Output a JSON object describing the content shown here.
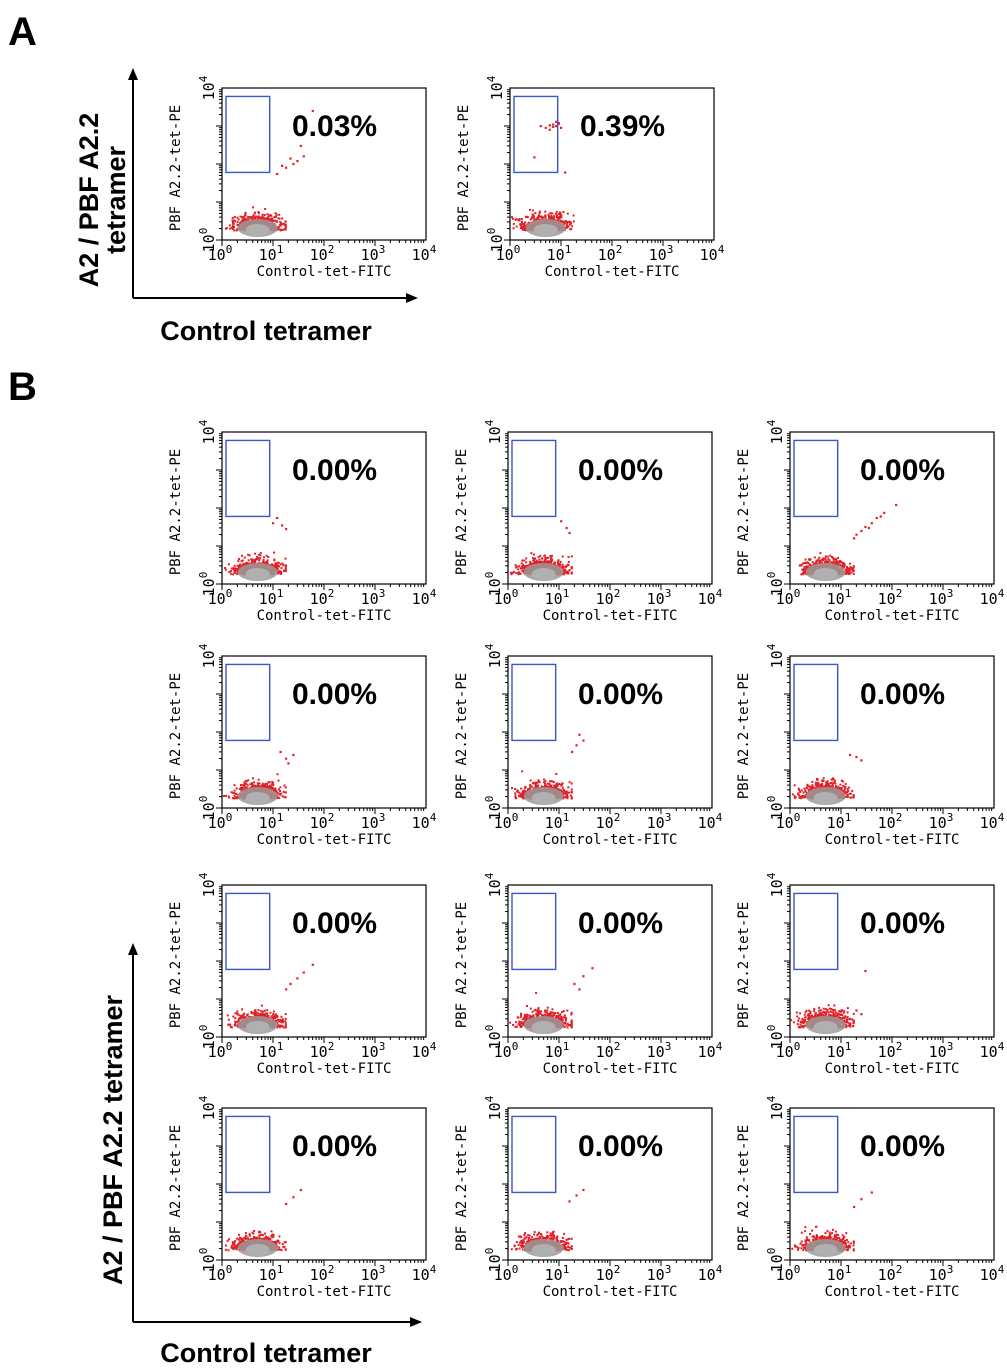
{
  "figure": {
    "panel_a_letter": "A",
    "panel_b_letter": "B",
    "panel_a_y_axis_label": [
      "A2 / PBF A2.2",
      "tetramer"
    ],
    "panel_a_x_axis_label": "Control tetramer",
    "panel_b_y_axis_label": "A2 / PBF A2.2 tetramer",
    "panel_b_x_axis_label": "Control tetramer",
    "colors": {
      "gate": "#3a55c8",
      "events": "#e21f26",
      "core": "#9a9a9a"
    }
  },
  "chart_data": [
    {
      "panel": "A",
      "type": "scatter",
      "xlabel": "Control-tet-FITC",
      "ylabel": "PBF A2.2-tet-PE",
      "log_scale": true,
      "xlim": [
        1,
        10000
      ],
      "ylim": [
        1,
        10000
      ],
      "x_ticks": [
        "10^0",
        "10^1",
        "10^2",
        "10^3",
        "10^4"
      ],
      "y_ticks": [
        "10^0",
        "10^4"
      ],
      "gate_percent": "0.03%",
      "gate": {
        "x": [
          1,
          6
        ],
        "y": [
          60,
          6000
        ]
      },
      "outliers": [
        [
          60,
          2500
        ],
        [
          35,
          300
        ],
        [
          18,
          80
        ],
        [
          22,
          140
        ],
        [
          12,
          55
        ],
        [
          25,
          100
        ],
        [
          30,
          120
        ],
        [
          40,
          160
        ],
        [
          15,
          90
        ]
      ]
    },
    {
      "panel": "A",
      "type": "scatter",
      "xlabel": "Control-tet-FITC",
      "ylabel": "PBF A2.2-tet-PE",
      "log_scale": true,
      "xlim": [
        1,
        10000
      ],
      "ylim": [
        1,
        10000
      ],
      "x_ticks": [
        "10^0",
        "10^1",
        "10^2",
        "10^3",
        "10^4"
      ],
      "y_ticks": [
        "10^0",
        "10^4"
      ],
      "gate_percent": "0.39%",
      "gate": {
        "x": [
          1,
          6
        ],
        "y": [
          60,
          6000
        ]
      },
      "outliers": [
        [
          5,
          900
        ],
        [
          7,
          1100
        ],
        [
          8,
          1000
        ],
        [
          6,
          800
        ],
        [
          9,
          1200
        ],
        [
          7,
          950
        ],
        [
          4,
          1000
        ],
        [
          8,
          1300
        ],
        [
          6,
          1050
        ],
        [
          10,
          900
        ],
        [
          3,
          150
        ],
        [
          12,
          60
        ],
        [
          9,
          1150
        ]
      ]
    },
    {
      "panel": "B",
      "type": "scatter",
      "xlabel": "Control-tet-FITC",
      "ylabel": "PBF A2.2-tet-PE",
      "log_scale": true,
      "xlim": [
        1,
        10000
      ],
      "ylim": [
        1,
        10000
      ],
      "x_ticks": [
        "10^0",
        "10^1",
        "10^2",
        "10^3",
        "10^4"
      ],
      "y_ticks": [
        "10^0",
        "10^4"
      ],
      "gate_percent": "0.00%",
      "gate": {
        "x": [
          1,
          6
        ],
        "y": [
          60,
          6000
        ]
      },
      "outliers": [
        [
          12,
          55
        ],
        [
          15,
          35
        ],
        [
          18,
          28
        ],
        [
          10,
          40
        ]
      ]
    },
    {
      "panel": "B",
      "type": "scatter",
      "xlabel": "Control-tet-FITC",
      "ylabel": "PBF A2.2-tet-PE",
      "log_scale": true,
      "xlim": [
        1,
        10000
      ],
      "ylim": [
        1,
        10000
      ],
      "x_ticks": [
        "10^0",
        "10^1",
        "10^2",
        "10^3",
        "10^4"
      ],
      "y_ticks": [
        "10^0",
        "10^4"
      ],
      "gate_percent": "0.00%",
      "gate": {
        "x": [
          1,
          6
        ],
        "y": [
          60,
          6000
        ]
      },
      "outliers": [
        [
          14,
          30
        ],
        [
          11,
          45
        ],
        [
          16,
          22
        ]
      ]
    },
    {
      "panel": "B",
      "type": "scatter",
      "xlabel": "Control-tet-FITC",
      "ylabel": "PBF A2.2-tet-PE",
      "log_scale": true,
      "xlim": [
        1,
        10000
      ],
      "ylim": [
        1,
        10000
      ],
      "x_ticks": [
        "10^0",
        "10^1",
        "10^2",
        "10^3",
        "10^4"
      ],
      "y_ticks": [
        "10^0",
        "10^4"
      ],
      "gate_percent": "0.00%",
      "gate": {
        "x": [
          1,
          6
        ],
        "y": [
          60,
          6000
        ]
      },
      "outliers": [
        [
          120,
          120
        ],
        [
          70,
          75
        ],
        [
          50,
          55
        ],
        [
          40,
          40
        ],
        [
          30,
          32
        ],
        [
          25,
          25
        ],
        [
          20,
          20
        ],
        [
          18,
          16
        ],
        [
          35,
          30
        ],
        [
          60,
          60
        ]
      ]
    },
    {
      "panel": "B",
      "type": "scatter",
      "xlabel": "Control-tet-FITC",
      "ylabel": "PBF A2.2-tet-PE",
      "log_scale": true,
      "xlim": [
        1,
        10000
      ],
      "ylim": [
        1,
        10000
      ],
      "x_ticks": [
        "10^0",
        "10^1",
        "10^2",
        "10^3",
        "10^4"
      ],
      "y_ticks": [
        "10^0",
        "10^4"
      ],
      "gate_percent": "0.00%",
      "gate": {
        "x": [
          1,
          6
        ],
        "y": [
          60,
          6000
        ]
      },
      "outliers": [
        [
          25,
          25
        ],
        [
          18,
          20
        ],
        [
          14,
          30
        ],
        [
          20,
          15
        ]
      ]
    },
    {
      "panel": "B",
      "type": "scatter",
      "xlabel": "Control-tet-FITC",
      "ylabel": "PBF A2.2-tet-PE",
      "log_scale": true,
      "xlim": [
        1,
        10000
      ],
      "ylim": [
        1,
        10000
      ],
      "x_ticks": [
        "10^0",
        "10^1",
        "10^2",
        "10^3",
        "10^4"
      ],
      "y_ticks": [
        "10^0",
        "10^4"
      ],
      "gate_percent": "0.00%",
      "gate": {
        "x": [
          1,
          6
        ],
        "y": [
          60,
          6000
        ]
      },
      "outliers": [
        [
          30,
          60
        ],
        [
          22,
          45
        ],
        [
          18,
          30
        ],
        [
          25,
          85
        ]
      ]
    },
    {
      "panel": "B",
      "type": "scatter",
      "xlabel": "Control-tet-FITC",
      "ylabel": "PBF A2.2-tet-PE",
      "log_scale": true,
      "xlim": [
        1,
        10000
      ],
      "ylim": [
        1,
        10000
      ],
      "x_ticks": [
        "10^0",
        "10^1",
        "10^2",
        "10^3",
        "10^4"
      ],
      "y_ticks": [
        "10^0",
        "10^4"
      ],
      "gate_percent": "0.00%",
      "gate": {
        "x": [
          1,
          6
        ],
        "y": [
          60,
          6000
        ]
      },
      "outliers": [
        [
          20,
          22
        ],
        [
          25,
          18
        ],
        [
          15,
          25
        ]
      ]
    },
    {
      "panel": "B",
      "type": "scatter",
      "xlabel": "Control-tet-FITC",
      "ylabel": "PBF A2.2-tet-PE",
      "log_scale": true,
      "xlim": [
        1,
        10000
      ],
      "ylim": [
        1,
        10000
      ],
      "x_ticks": [
        "10^0",
        "10^1",
        "10^2",
        "10^3",
        "10^4"
      ],
      "y_ticks": [
        "10^0",
        "10^4"
      ],
      "gate_percent": "0.00%",
      "gate": {
        "x": [
          1,
          6
        ],
        "y": [
          60,
          6000
        ]
      },
      "outliers": [
        [
          60,
          80
        ],
        [
          40,
          50
        ],
        [
          30,
          35
        ],
        [
          22,
          25
        ],
        [
          18,
          18
        ]
      ]
    },
    {
      "panel": "B",
      "type": "scatter",
      "xlabel": "Control-tet-FITC",
      "ylabel": "PBF A2.2-tet-PE",
      "log_scale": true,
      "xlim": [
        1,
        10000
      ],
      "ylim": [
        1,
        10000
      ],
      "x_ticks": [
        "10^0",
        "10^1",
        "10^2",
        "10^3",
        "10^4"
      ],
      "y_ticks": [
        "10^0",
        "10^4"
      ],
      "gate_percent": "0.00%",
      "gate": {
        "x": [
          1,
          6
        ],
        "y": [
          60,
          6000
        ]
      },
      "outliers": [
        [
          45,
          65
        ],
        [
          30,
          40
        ],
        [
          20,
          25
        ],
        [
          25,
          18
        ]
      ]
    },
    {
      "panel": "B",
      "type": "scatter",
      "xlabel": "Control-tet-FITC",
      "ylabel": "PBF A2.2-tet-PE",
      "log_scale": true,
      "xlim": [
        1,
        10000
      ],
      "ylim": [
        1,
        10000
      ],
      "x_ticks": [
        "10^0",
        "10^1",
        "10^2",
        "10^3",
        "10^4"
      ],
      "y_ticks": [
        "10^0",
        "10^4"
      ],
      "gate_percent": "0.00%",
      "gate": {
        "x": [
          1,
          6
        ],
        "y": [
          60,
          6000
        ]
      },
      "outliers": [
        [
          30,
          55
        ],
        [
          20,
          5
        ],
        [
          15,
          3
        ],
        [
          25,
          4
        ]
      ]
    },
    {
      "panel": "B",
      "type": "scatter",
      "xlabel": "Control-tet-FITC",
      "ylabel": "PBF A2.2-tet-PE",
      "log_scale": true,
      "xlim": [
        1,
        10000
      ],
      "ylim": [
        1,
        10000
      ],
      "x_ticks": [
        "10^0",
        "10^1",
        "10^2",
        "10^3",
        "10^4"
      ],
      "y_ticks": [
        "10^0",
        "10^4"
      ],
      "gate_percent": "0.00%",
      "gate": {
        "x": [
          1,
          6
        ],
        "y": [
          60,
          6000
        ]
      },
      "outliers": [
        [
          35,
          70
        ],
        [
          25,
          45
        ],
        [
          18,
          30
        ]
      ]
    },
    {
      "panel": "B",
      "type": "scatter",
      "xlabel": "Control-tet-FITC",
      "ylabel": "PBF A2.2-tet-PE",
      "log_scale": true,
      "xlim": [
        1,
        10000
      ],
      "ylim": [
        1,
        10000
      ],
      "x_ticks": [
        "10^0",
        "10^1",
        "10^2",
        "10^3",
        "10^4"
      ],
      "y_ticks": [
        "10^0",
        "10^4"
      ],
      "gate_percent": "0.00%",
      "gate": {
        "x": [
          1,
          6
        ],
        "y": [
          60,
          6000
        ]
      },
      "outliers": [
        [
          30,
          70
        ],
        [
          22,
          50
        ],
        [
          16,
          35
        ]
      ]
    },
    {
      "panel": "B",
      "type": "scatter",
      "xlabel": "Control-tet-FITC",
      "ylabel": "PBF A2.2-tet-PE",
      "log_scale": true,
      "xlim": [
        1,
        10000
      ],
      "ylim": [
        1,
        10000
      ],
      "x_ticks": [
        "10^0",
        "10^1",
        "10^2",
        "10^3",
        "10^4"
      ],
      "y_ticks": [
        "10^0",
        "10^4"
      ],
      "gate_percent": "0.00%",
      "gate": {
        "x": [
          1,
          6
        ],
        "y": [
          60,
          6000
        ]
      },
      "outliers": [
        [
          40,
          60
        ],
        [
          25,
          40
        ],
        [
          18,
          25
        ]
      ]
    }
  ]
}
